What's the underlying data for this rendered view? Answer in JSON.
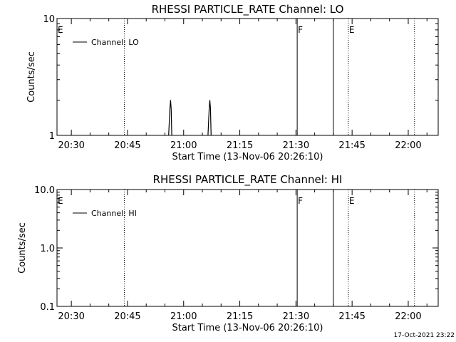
{
  "footer": {
    "timestamp": "17-Oct-2021 23:22"
  },
  "chart_data": [
    {
      "type": "line",
      "title": "RHESSI PARTICLE_RATE Channel: LO",
      "xlabel": "Start Time (13-Nov-06 20:26:10)",
      "ylabel": "Counts/sec",
      "yscale": "log",
      "ylim": [
        1,
        10
      ],
      "ytick_labels": [
        {
          "v": 1,
          "label": "1"
        },
        {
          "v": 10,
          "label": "10"
        }
      ],
      "xlim": [
        "20:26:10",
        "22:08:00"
      ],
      "xtick_labels": [
        "20:30",
        "20:45",
        "21:00",
        "21:15",
        "21:30",
        "21:45",
        "22:00"
      ],
      "legend": {
        "position": "top-left",
        "entries": [
          "Channel: LO"
        ]
      },
      "series": [
        {
          "name": "Channel: LO",
          "x": [
            "20:56:00",
            "20:56:20",
            "20:56:30",
            "20:56:40",
            "20:56:50",
            "21:06:30",
            "21:06:50",
            "21:07:00",
            "21:07:10",
            "21:07:20"
          ],
          "y": [
            1,
            1.7,
            2.0,
            1.7,
            1,
            1,
            1.7,
            2.0,
            1.7,
            1
          ]
        }
      ],
      "markers": [
        {
          "label": "E",
          "time": "20:26:10",
          "style": "dotted"
        },
        {
          "label": "",
          "time": "20:44:10",
          "style": "dotted"
        },
        {
          "label": "F",
          "time": "21:30:20",
          "style": "solid"
        },
        {
          "label": "",
          "time": "21:40:00",
          "style": "solid"
        },
        {
          "label": "E",
          "time": "21:44:00",
          "style": "dotted"
        },
        {
          "label": "",
          "time": "22:01:40",
          "style": "dotted"
        }
      ]
    },
    {
      "type": "line",
      "title": "RHESSI PARTICLE_RATE Channel: HI",
      "xlabel": "Start Time (13-Nov-06 20:26:10)",
      "ylabel": "Counts/sec",
      "yscale": "log",
      "ylim": [
        0.1,
        10
      ],
      "ytick_labels": [
        {
          "v": 0.1,
          "label": "0.1"
        },
        {
          "v": 1,
          "label": "1.0"
        },
        {
          "v": 10,
          "label": "10.0"
        }
      ],
      "xlim": [
        "20:26:10",
        "22:08:00"
      ],
      "xtick_labels": [
        "20:30",
        "20:45",
        "21:00",
        "21:15",
        "21:30",
        "21:45",
        "22:00"
      ],
      "legend": {
        "position": "top-left",
        "entries": [
          "Channel: HI"
        ]
      },
      "series": [
        {
          "name": "Channel: HI",
          "x": [],
          "y": []
        }
      ],
      "markers": [
        {
          "label": "E",
          "time": "20:26:10",
          "style": "dotted"
        },
        {
          "label": "",
          "time": "20:44:10",
          "style": "dotted"
        },
        {
          "label": "F",
          "time": "21:30:20",
          "style": "solid"
        },
        {
          "label": "",
          "time": "21:40:00",
          "style": "solid"
        },
        {
          "label": "E",
          "time": "21:44:00",
          "style": "dotted"
        },
        {
          "label": "",
          "time": "22:01:40",
          "style": "dotted"
        }
      ]
    }
  ]
}
